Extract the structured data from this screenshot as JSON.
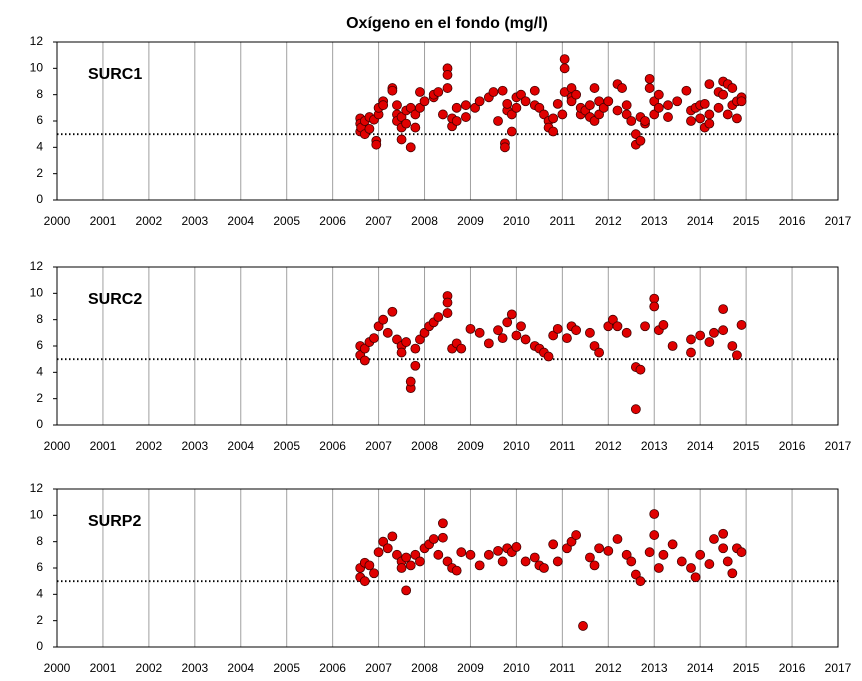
{
  "chart_data": [
    {
      "type": "scatter",
      "title": "Oxígeno en el fondo (mg/l)",
      "annotation": "SURC1",
      "color": "#e00000",
      "reference_line": 5,
      "xlim": [
        2000,
        2017
      ],
      "xticks": [
        2000,
        2001,
        2002,
        2003,
        2004,
        2005,
        2006,
        2007,
        2008,
        2009,
        2010,
        2011,
        2012,
        2013,
        2014,
        2015,
        2016,
        2017
      ],
      "ylim": [
        0,
        12
      ],
      "yticks": [
        0,
        2,
        4,
        6,
        8,
        10,
        12
      ],
      "grid": true,
      "x": [
        2006.6,
        2006.6,
        2006.6,
        2006.62,
        2006.7,
        2006.7,
        2006.8,
        2006.8,
        2006.9,
        2006.95,
        2006.95,
        2007.0,
        2007.0,
        2007.1,
        2007.1,
        2007.3,
        2007.3,
        2007.4,
        2007.4,
        2007.4,
        2007.5,
        2007.5,
        2007.5,
        2007.6,
        2007.6,
        2007.7,
        2007.7,
        2007.8,
        2007.8,
        2007.9,
        2007.9,
        2008.0,
        2008.2,
        2008.2,
        2008.3,
        2008.4,
        2008.5,
        2008.5,
        2008.5,
        2008.6,
        2008.6,
        2008.7,
        2008.7,
        2008.9,
        2008.9,
        2009.1,
        2009.2,
        2009.4,
        2009.5,
        2009.6,
        2009.7,
        2009.75,
        2009.75,
        2009.8,
        2009.8,
        2009.9,
        2009.9,
        2010.0,
        2010.0,
        2010.1,
        2010.2,
        2010.4,
        2010.4,
        2010.5,
        2010.6,
        2010.7,
        2010.7,
        2010.8,
        2010.8,
        2010.9,
        2011.0,
        2011.05,
        2011.05,
        2011.05,
        2011.2,
        2011.2,
        2011.2,
        2011.3,
        2011.4,
        2011.4,
        2011.5,
        2011.6,
        2011.6,
        2011.7,
        2011.7,
        2011.8,
        2011.8,
        2011.9,
        2012.0,
        2012.2,
        2012.2,
        2012.3,
        2012.4,
        2012.4,
        2012.5,
        2012.6,
        2012.6,
        2012.7,
        2012.7,
        2012.8,
        2012.8,
        2012.9,
        2012.9,
        2013.0,
        2013.0,
        2013.1,
        2013.1,
        2013.3,
        2013.3,
        2013.5,
        2013.7,
        2013.8,
        2013.8,
        2013.9,
        2014.0,
        2014.0,
        2014.1,
        2014.1,
        2014.2,
        2014.2,
        2014.2,
        2014.4,
        2014.4,
        2014.5,
        2014.5,
        2014.6,
        2014.6,
        2014.7,
        2014.7,
        2014.8,
        2014.8,
        2014.9,
        2014.9
      ],
      "values": [
        6.2,
        5.8,
        5.2,
        5.5,
        6.0,
        5.0,
        5.4,
        6.3,
        6.1,
        4.5,
        4.2,
        6.5,
        7.0,
        7.5,
        7.2,
        8.5,
        8.3,
        7.2,
        6.5,
        6.0,
        5.5,
        4.6,
        6.3,
        6.8,
        5.8,
        4.0,
        7.0,
        6.5,
        5.5,
        8.2,
        7.0,
        7.5,
        7.8,
        8.0,
        8.2,
        6.5,
        10.0,
        9.5,
        8.5,
        5.6,
        6.2,
        7.0,
        6.0,
        7.2,
        6.3,
        7.0,
        7.5,
        7.8,
        8.2,
        6.0,
        8.3,
        4.3,
        4.0,
        6.8,
        7.3,
        5.2,
        6.5,
        7.0,
        7.8,
        8.0,
        7.5,
        7.2,
        8.3,
        7.0,
        6.5,
        6.0,
        5.5,
        5.2,
        6.2,
        7.3,
        6.5,
        8.2,
        10.7,
        10.0,
        7.8,
        7.5,
        8.5,
        8.0,
        6.5,
        7.0,
        6.8,
        6.3,
        7.2,
        8.5,
        6.0,
        7.5,
        6.5,
        7.0,
        7.5,
        8.8,
        6.8,
        8.5,
        7.2,
        6.5,
        6.0,
        5.0,
        4.2,
        4.5,
        6.3,
        5.8,
        6.0,
        9.2,
        8.5,
        7.5,
        6.5,
        8.0,
        7.0,
        7.2,
        6.3,
        7.5,
        8.3,
        6.0,
        6.8,
        7.0,
        7.2,
        6.2,
        5.5,
        7.3,
        6.5,
        5.8,
        8.8,
        8.2,
        7.0,
        9.0,
        8.0,
        6.5,
        8.8,
        7.2,
        8.5,
        6.2,
        7.5,
        7.8,
        7.5
      ]
    },
    {
      "type": "scatter",
      "annotation": "SURC2",
      "color": "#e00000",
      "reference_line": 5,
      "xlim": [
        2000,
        2017
      ],
      "xticks": [
        2000,
        2001,
        2002,
        2003,
        2004,
        2005,
        2006,
        2007,
        2008,
        2009,
        2010,
        2011,
        2012,
        2013,
        2014,
        2015,
        2016,
        2017
      ],
      "ylim": [
        0,
        12
      ],
      "yticks": [
        0,
        2,
        4,
        6,
        8,
        10,
        12
      ],
      "grid": true,
      "x": [
        2006.6,
        2006.6,
        2006.7,
        2006.7,
        2006.8,
        2006.9,
        2007.0,
        2007.1,
        2007.2,
        2007.3,
        2007.4,
        2007.5,
        2007.5,
        2007.6,
        2007.7,
        2007.7,
        2007.8,
        2007.8,
        2007.9,
        2008.0,
        2008.1,
        2008.2,
        2008.3,
        2008.5,
        2008.5,
        2008.5,
        2008.6,
        2008.7,
        2008.8,
        2009.0,
        2009.2,
        2009.4,
        2009.6,
        2009.7,
        2009.8,
        2009.9,
        2010.0,
        2010.1,
        2010.2,
        2010.4,
        2010.5,
        2010.6,
        2010.7,
        2010.8,
        2010.9,
        2011.1,
        2011.2,
        2011.3,
        2011.6,
        2011.7,
        2011.8,
        2012.0,
        2012.1,
        2012.2,
        2012.4,
        2012.6,
        2012.6,
        2012.7,
        2012.8,
        2013.0,
        2013.0,
        2013.1,
        2013.2,
        2013.4,
        2013.8,
        2013.8,
        2014.0,
        2014.2,
        2014.3,
        2014.5,
        2014.5,
        2014.7,
        2014.8,
        2014.9
      ],
      "values": [
        6.0,
        5.3,
        5.8,
        4.9,
        6.3,
        6.6,
        7.5,
        8.0,
        7.0,
        8.6,
        6.5,
        6.0,
        5.5,
        6.3,
        2.8,
        3.3,
        4.5,
        5.8,
        6.5,
        7.0,
        7.5,
        7.8,
        8.2,
        9.8,
        9.3,
        8.5,
        5.8,
        6.2,
        5.8,
        7.3,
        7.0,
        6.2,
        7.2,
        6.6,
        7.8,
        8.4,
        6.8,
        7.5,
        6.5,
        6.0,
        5.8,
        5.5,
        5.2,
        6.8,
        7.3,
        6.6,
        7.5,
        7.2,
        7.0,
        6.0,
        5.5,
        7.5,
        8.0,
        7.5,
        7.0,
        4.4,
        1.2,
        4.2,
        7.5,
        9.6,
        9.0,
        7.2,
        7.6,
        6.0,
        6.5,
        5.5,
        6.8,
        6.3,
        7.0,
        8.8,
        7.2,
        6.0,
        5.3,
        7.6
      ]
    },
    {
      "type": "scatter",
      "annotation": "SURP2",
      "color": "#e00000",
      "reference_line": 5,
      "xlim": [
        2000,
        2017
      ],
      "xticks": [
        2000,
        2001,
        2002,
        2003,
        2004,
        2005,
        2006,
        2007,
        2008,
        2009,
        2010,
        2011,
        2012,
        2013,
        2014,
        2015,
        2016,
        2017
      ],
      "ylim": [
        0,
        12
      ],
      "yticks": [
        0,
        2,
        4,
        6,
        8,
        10,
        12
      ],
      "grid": true,
      "x": [
        2006.6,
        2006.6,
        2006.7,
        2006.7,
        2006.8,
        2006.9,
        2007.0,
        2007.1,
        2007.2,
        2007.3,
        2007.4,
        2007.5,
        2007.5,
        2007.6,
        2007.6,
        2007.7,
        2007.8,
        2007.9,
        2008.0,
        2008.1,
        2008.2,
        2008.3,
        2008.4,
        2008.4,
        2008.5,
        2008.6,
        2008.7,
        2008.8,
        2009.0,
        2009.2,
        2009.4,
        2009.6,
        2009.7,
        2009.8,
        2009.9,
        2010.0,
        2010.2,
        2010.4,
        2010.5,
        2010.6,
        2010.8,
        2010.9,
        2011.1,
        2011.2,
        2011.3,
        2011.45,
        2011.6,
        2011.7,
        2011.8,
        2012.0,
        2012.2,
        2012.4,
        2012.5,
        2012.6,
        2012.7,
        2012.9,
        2013.0,
        2013.0,
        2013.1,
        2013.2,
        2013.4,
        2013.6,
        2013.8,
        2013.9,
        2014.0,
        2014.2,
        2014.3,
        2014.5,
        2014.5,
        2014.6,
        2014.7,
        2014.8,
        2014.9
      ],
      "values": [
        6.0,
        5.3,
        6.4,
        5.0,
        6.2,
        5.6,
        7.2,
        8.0,
        7.5,
        8.4,
        7.0,
        6.5,
        6.0,
        6.8,
        4.3,
        6.2,
        7.0,
        6.5,
        7.5,
        7.8,
        8.2,
        7.0,
        9.4,
        8.3,
        6.5,
        6.0,
        5.8,
        7.2,
        7.0,
        6.2,
        7.0,
        7.3,
        6.5,
        7.5,
        7.2,
        7.6,
        6.5,
        6.8,
        6.2,
        6.0,
        7.8,
        6.5,
        7.5,
        8.0,
        8.5,
        1.6,
        6.8,
        6.2,
        7.5,
        7.3,
        8.2,
        7.0,
        6.5,
        5.5,
        5.0,
        7.2,
        10.1,
        8.5,
        6.0,
        7.0,
        7.8,
        6.5,
        6.0,
        5.3,
        7.0,
        6.3,
        8.2,
        8.6,
        7.5,
        6.5,
        5.6,
        7.5,
        7.2
      ]
    }
  ]
}
